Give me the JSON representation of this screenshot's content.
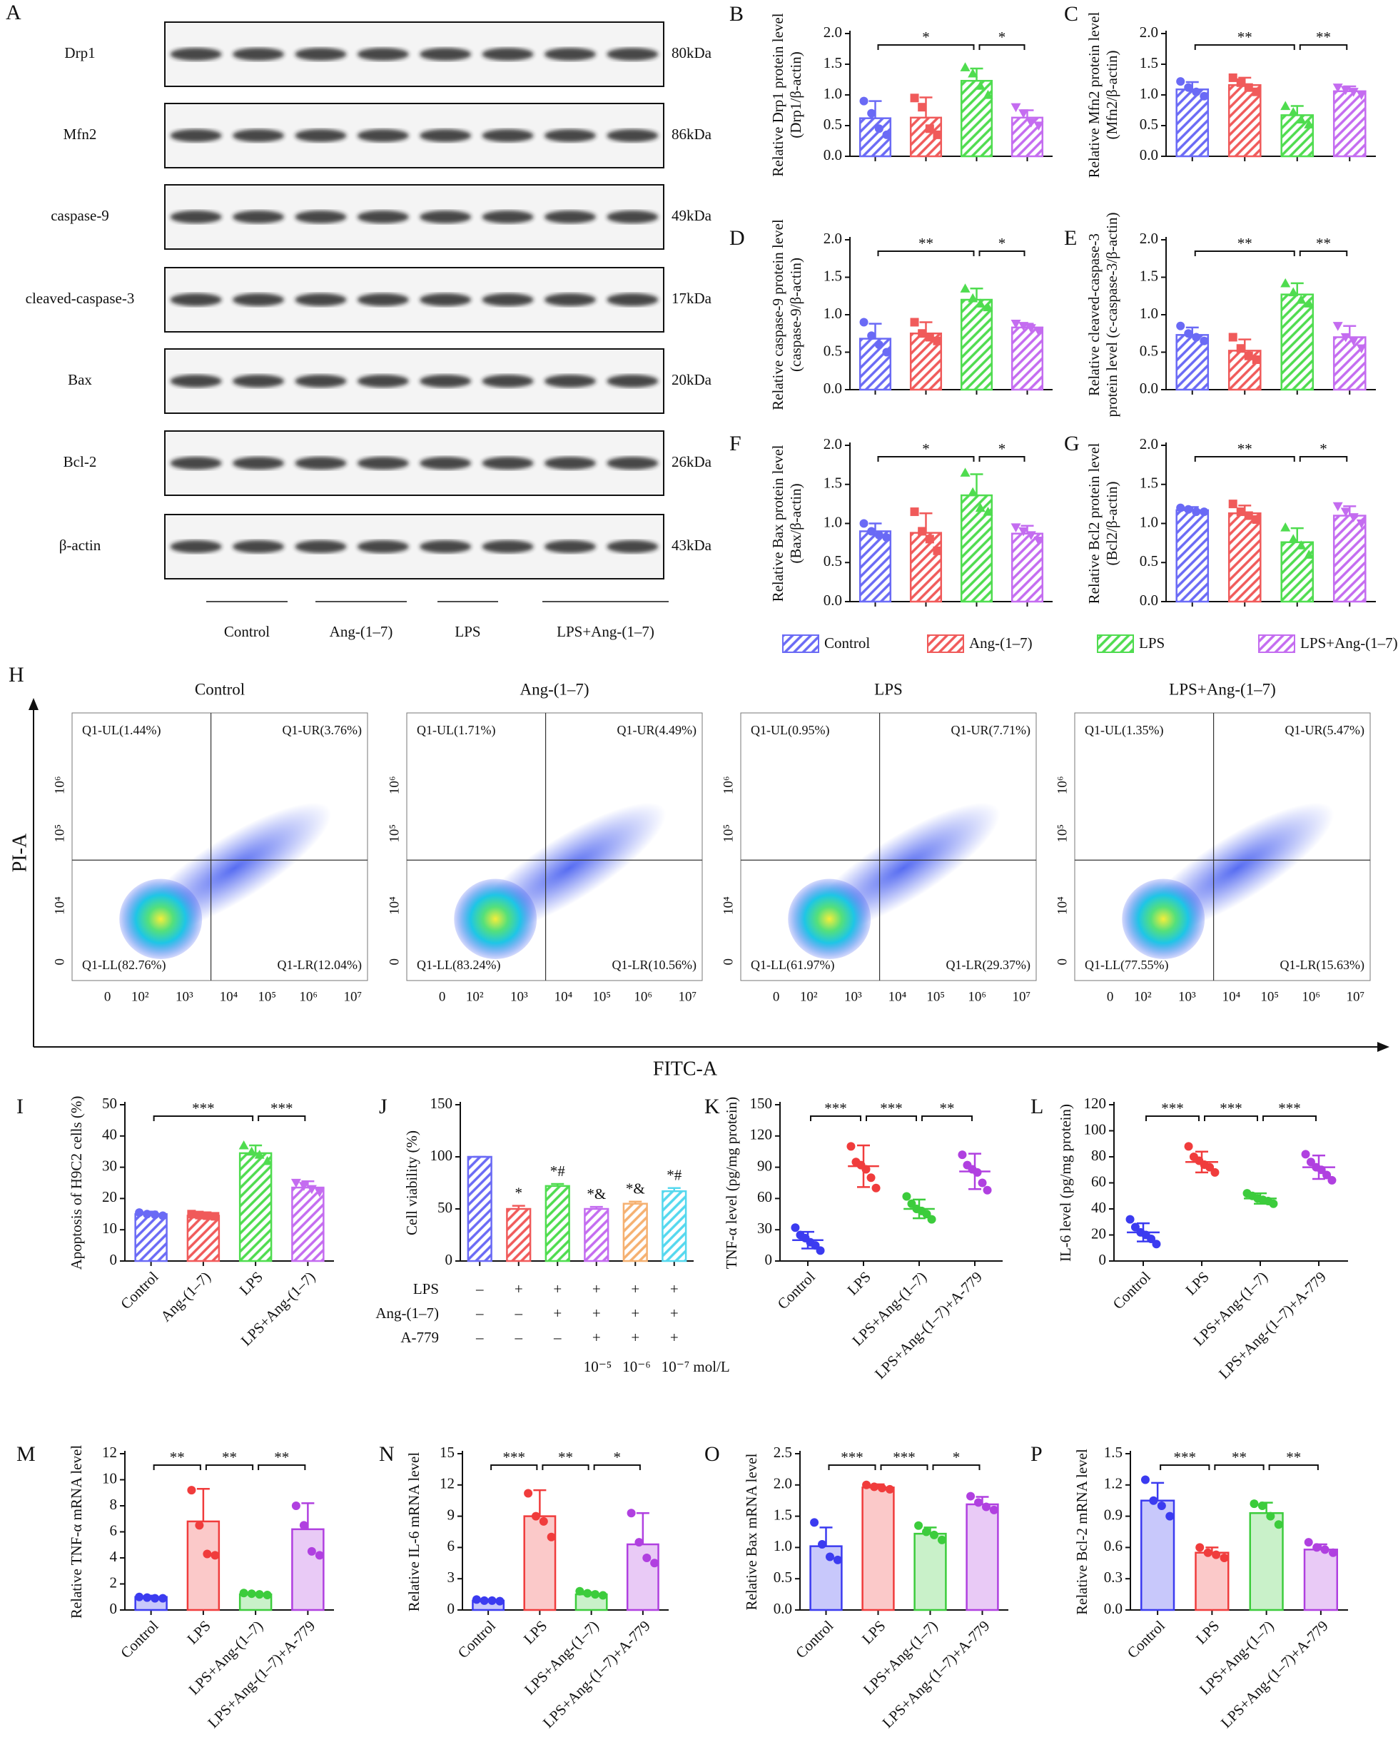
{
  "blot": {
    "panel": "A",
    "rows": [
      {
        "label": "Drp1",
        "size": "80kDa"
      },
      {
        "label": "Mfn2",
        "size": "86kDa"
      },
      {
        "label": "caspase-9",
        "size": "49kDa"
      },
      {
        "label": "cleaved-caspase-3",
        "size": "17kDa"
      },
      {
        "label": "Bax",
        "size": "20kDa"
      },
      {
        "label": "Bcl-2",
        "size": "26kDa"
      },
      {
        "label": "β-actin",
        "size": "43kDa"
      }
    ],
    "groups": [
      "Control",
      "Ang-(1–7)",
      "LPS",
      "LPS+Ang-(1–7)"
    ]
  },
  "groups": [
    {
      "name": "Control",
      "color": "#6a6af5",
      "marker": "circle"
    },
    {
      "name": "Ang-(1–7)",
      "color": "#f05a5a",
      "marker": "square"
    },
    {
      "name": "LPS",
      "color": "#4fdc4f",
      "marker": "triangle-up"
    },
    {
      "name": "LPS+Ang-(1–7)",
      "color": "#c46cf0",
      "marker": "triangle-down"
    }
  ],
  "flow": {
    "panel": "H",
    "xlabel": "FITC-A",
    "ylabel": "PI-A",
    "xticks": [
      "0",
      "10²",
      "10³",
      "10⁴",
      "10⁵",
      "10⁶",
      "10⁷"
    ],
    "yticks": [
      "0",
      "10⁴",
      "10⁵",
      "10⁶"
    ],
    "plots": [
      {
        "title": "Control",
        "UL": "Q1-UL(1.44%)",
        "UR": "Q1-UR(3.76%)",
        "LL": "Q1-LL(82.76%)",
        "LR": "Q1-LR(12.04%)"
      },
      {
        "title": "Ang-(1–7)",
        "UL": "Q1-UL(1.71%)",
        "UR": "Q1-UR(4.49%)",
        "LL": "Q1-LL(83.24%)",
        "LR": "Q1-LR(10.56%)"
      },
      {
        "title": "LPS",
        "UL": "Q1-UL(0.95%)",
        "UR": "Q1-UR(7.71%)",
        "LL": "Q1-LL(61.97%)",
        "LR": "Q1-LR(29.37%)"
      },
      {
        "title": "LPS+Ang-(1–7)",
        "UL": "Q1-UL(1.35%)",
        "UR": "Q1-UR(5.47%)",
        "LL": "Q1-LL(77.55%)",
        "LR": "Q1-LR(15.63%)"
      }
    ]
  },
  "chart_data": [
    {
      "type": "bar",
      "panel": "B",
      "bar_style": "hatched",
      "ylabel": [
        "Relative Drp1 protein level",
        "(Drp1/β-actin)"
      ],
      "ylim": [
        0,
        2
      ],
      "yticks": [
        {
          "value": 0,
          "label": "0.0"
        },
        0.5,
        {
          "value": 1,
          "label": "1.0"
        },
        1.5,
        {
          "value": 2,
          "label": "2.0"
        }
      ],
      "values": [
        0.62,
        0.63,
        1.23,
        0.63
      ],
      "errors": [
        0.28,
        0.33,
        0.2,
        0.12
      ],
      "points": [
        [
          0.9,
          0.7,
          0.45,
          0.35
        ],
        [
          0.95,
          0.8,
          0.45,
          0.35
        ],
        [
          1.45,
          1.35,
          1.15,
          1.0
        ],
        [
          0.8,
          0.7,
          0.55,
          0.5
        ]
      ],
      "brackets": [
        {
          "text": "*",
          "from": 0,
          "to": 2
        },
        {
          "text": "*",
          "from": 2,
          "to": 3
        }
      ]
    },
    {
      "type": "bar",
      "panel": "C",
      "bar_style": "hatched",
      "ylabel": [
        "Relative Mfn2 protein level",
        "(Mfn2/β-actin)"
      ],
      "ylim": [
        0,
        2
      ],
      "yticks": [
        {
          "value": 0,
          "label": "0.0"
        },
        0.5,
        {
          "value": 1,
          "label": "1.0"
        },
        1.5,
        {
          "value": 2,
          "label": "2.0"
        }
      ],
      "values": [
        1.09,
        1.16,
        0.67,
        1.06
      ],
      "errors": [
        0.12,
        0.12,
        0.15,
        0.08
      ],
      "points": [
        [
          1.22,
          1.12,
          1.05,
          0.98
        ],
        [
          1.28,
          1.2,
          1.12,
          1.05
        ],
        [
          0.82,
          0.72,
          0.6,
          0.52
        ],
        [
          1.12,
          1.08,
          1.05,
          1.0
        ]
      ],
      "brackets": [
        {
          "text": "**",
          "from": 0,
          "to": 2
        },
        {
          "text": "**",
          "from": 2,
          "to": 3
        }
      ]
    },
    {
      "type": "bar",
      "panel": "D",
      "bar_style": "hatched",
      "ylabel": [
        "Relative caspase-9 protein level",
        "(caspase-9/β-actin)"
      ],
      "ylim": [
        0,
        2
      ],
      "yticks": [
        {
          "value": 0,
          "label": "0.0"
        },
        0.5,
        {
          "value": 1,
          "label": "1.0"
        },
        1.5,
        {
          "value": 2,
          "label": "2.0"
        }
      ],
      "values": [
        0.68,
        0.75,
        1.2,
        0.83
      ],
      "errors": [
        0.2,
        0.15,
        0.15,
        0.05
      ],
      "points": [
        [
          0.9,
          0.72,
          0.6,
          0.5
        ],
        [
          0.9,
          0.75,
          0.7,
          0.65
        ],
        [
          1.35,
          1.22,
          1.15,
          1.1
        ],
        [
          0.88,
          0.85,
          0.82,
          0.78
        ]
      ],
      "brackets": [
        {
          "text": "**",
          "from": 0,
          "to": 2
        },
        {
          "text": "*",
          "from": 2,
          "to": 3
        }
      ]
    },
    {
      "type": "bar",
      "panel": "E",
      "bar_style": "hatched",
      "ylabel": [
        "Relative cleaved-caspase-3",
        "protein level (c-caspase-3/β-actin)"
      ],
      "ylim": [
        0,
        2
      ],
      "yticks": [
        {
          "value": 0,
          "label": "0.0"
        },
        0.5,
        {
          "value": 1,
          "label": "1.0"
        },
        1.5,
        {
          "value": 2,
          "label": "2.0"
        }
      ],
      "values": [
        0.73,
        0.52,
        1.27,
        0.7
      ],
      "errors": [
        0.1,
        0.15,
        0.15,
        0.15
      ],
      "points": [
        [
          0.85,
          0.75,
          0.7,
          0.65
        ],
        [
          0.7,
          0.55,
          0.45,
          0.4
        ],
        [
          1.42,
          1.3,
          1.2,
          1.15
        ],
        [
          0.85,
          0.7,
          0.65,
          0.55
        ]
      ],
      "brackets": [
        {
          "text": "**",
          "from": 0,
          "to": 2
        },
        {
          "text": "**",
          "from": 2,
          "to": 3
        }
      ]
    },
    {
      "type": "bar",
      "panel": "F",
      "bar_style": "hatched",
      "ylabel": [
        "Relative Bax protein level",
        "(Bax/β-actin)"
      ],
      "ylim": [
        0,
        2
      ],
      "yticks": [
        {
          "value": 0,
          "label": "0.0"
        },
        0.5,
        {
          "value": 1,
          "label": "1.0"
        },
        1.5,
        {
          "value": 2,
          "label": "2.0"
        }
      ],
      "values": [
        0.9,
        0.88,
        1.36,
        0.87
      ],
      "errors": [
        0.1,
        0.25,
        0.27,
        0.1
      ],
      "points": [
        [
          1.0,
          0.9,
          0.85,
          0.82
        ],
        [
          1.15,
          0.9,
          0.8,
          0.65
        ],
        [
          1.65,
          1.4,
          1.2,
          1.15
        ],
        [
          0.95,
          0.9,
          0.85,
          0.78
        ]
      ],
      "brackets": [
        {
          "text": "*",
          "from": 0,
          "to": 2
        },
        {
          "text": "*",
          "from": 2,
          "to": 3
        }
      ]
    },
    {
      "type": "bar",
      "panel": "G",
      "bar_style": "hatched",
      "ylabel": [
        "Relative Bcl2 protein level",
        "(Bcl2/β-actin)"
      ],
      "ylim": [
        0,
        2
      ],
      "yticks": [
        {
          "value": 0,
          "label": "0.0"
        },
        0.5,
        {
          "value": 1,
          "label": "1.0"
        },
        1.5,
        {
          "value": 2,
          "label": "2.0"
        }
      ],
      "values": [
        1.17,
        1.13,
        0.76,
        1.1
      ],
      "errors": [
        0.04,
        0.1,
        0.18,
        0.12
      ],
      "points": [
        [
          1.2,
          1.18,
          1.15,
          1.15
        ],
        [
          1.25,
          1.15,
          1.1,
          1.05
        ],
        [
          0.95,
          0.8,
          0.72,
          0.6
        ],
        [
          1.22,
          1.15,
          1.08,
          1.0
        ]
      ],
      "brackets": [
        {
          "text": "**",
          "from": 0,
          "to": 2
        },
        {
          "text": "*",
          "from": 2,
          "to": 3
        }
      ]
    },
    {
      "type": "bar",
      "panel": "I",
      "bar_style": "hatched",
      "ylabel": [
        "Apoptosis of H9C2 cells (%)"
      ],
      "ylim": [
        0,
        50
      ],
      "yticks": [
        0,
        10,
        20,
        30,
        40,
        50
      ],
      "categories": [
        "Control",
        "Ang-(1–7)",
        "LPS",
        "LPS+Ang-(1–7)"
      ],
      "values": [
        15,
        14.5,
        34.5,
        23.5
      ],
      "errors": [
        0.8,
        0.8,
        2.5,
        2
      ],
      "points": [
        [
          15.5,
          15,
          14.8,
          14.5
        ],
        [
          15,
          14.7,
          14.5,
          14.3
        ],
        [
          37,
          35,
          34,
          32
        ],
        [
          25,
          24,
          23,
          22
        ]
      ],
      "brackets": [
        {
          "text": "***",
          "from": 0,
          "to": 2
        },
        {
          "text": "***",
          "from": 2,
          "to": 3
        }
      ]
    },
    {
      "type": "bar",
      "panel": "J",
      "bar_style": "hatched",
      "ylabel": [
        "Cell viability (%)"
      ],
      "ylim": [
        0,
        150
      ],
      "yticks": [
        0,
        50,
        100,
        150
      ],
      "values": [
        100,
        50,
        72,
        50,
        55,
        67
      ],
      "errors": [
        0,
        3,
        2,
        2,
        2,
        3
      ],
      "colors": [
        "#6a6af5",
        "#f05a5a",
        "#4fdc4f",
        "#c46cf0",
        "#f5b070",
        "#55d8ee"
      ],
      "annotations": [
        null,
        "*",
        "*#",
        "*&",
        "*&",
        "*#"
      ],
      "table": [
        {
          "label": "LPS",
          "marks": [
            "–",
            "+",
            "+",
            "+",
            "+",
            "+"
          ]
        },
        {
          "label": "Ang-(1–7)",
          "marks": [
            "–",
            "–",
            "+",
            "+",
            "+",
            "+"
          ]
        },
        {
          "label": "A-779",
          "marks": [
            "–",
            "–",
            "–",
            "+",
            "+",
            "+"
          ]
        }
      ],
      "concentrations": [
        null,
        null,
        null,
        "10⁻⁵",
        "10⁻⁶",
        "10⁻⁷ mol/L"
      ]
    },
    {
      "type": "dot",
      "panel": "K",
      "ylabel": [
        "TNF-α level (pg/mg protein)"
      ],
      "ylim": [
        0,
        150
      ],
      "yticks": [
        0,
        30,
        60,
        90,
        120,
        150
      ],
      "categories": [
        "Control",
        "LPS",
        "LPS+Ang-(1–7)",
        "LPS+Ang-(1–7)+A-779"
      ],
      "colors": [
        "#3b3bf0",
        "#f03c3c",
        "#3ccc3c",
        "#b040e0"
      ],
      "values": [
        20,
        91,
        50,
        86
      ],
      "errors": [
        8,
        20,
        9,
        17
      ],
      "points": [
        [
          32,
          25,
          22,
          18,
          15,
          10
        ],
        [
          110,
          95,
          92,
          88,
          80,
          70
        ],
        [
          62,
          55,
          50,
          48,
          45,
          40
        ],
        [
          102,
          92,
          88,
          85,
          75,
          68
        ]
      ],
      "brackets": [
        {
          "text": "***",
          "from": 0,
          "to": 1
        },
        {
          "text": "***",
          "from": 1,
          "to": 2
        },
        {
          "text": "**",
          "from": 2,
          "to": 3
        }
      ]
    },
    {
      "type": "dot",
      "panel": "L",
      "ylabel": [
        "IL-6 level (pg/mg protein)"
      ],
      "ylim": [
        0,
        120
      ],
      "yticks": [
        0,
        20,
        40,
        60,
        80,
        100,
        120
      ],
      "categories": [
        "Control",
        "LPS",
        "LPS+Ang-(1–7)",
        "LPS+Ang-(1–7)+A-779"
      ],
      "colors": [
        "#3b3bf0",
        "#f03c3c",
        "#3ccc3c",
        "#b040e0"
      ],
      "values": [
        22,
        76,
        48,
        72
      ],
      "errors": [
        7,
        8,
        4,
        9
      ],
      "points": [
        [
          32,
          26,
          22,
          20,
          17,
          13
        ],
        [
          88,
          80,
          77,
          74,
          72,
          68
        ],
        [
          52,
          50,
          48,
          47,
          46,
          44
        ],
        [
          82,
          76,
          72,
          70,
          66,
          62
        ]
      ],
      "brackets": [
        {
          "text": "***",
          "from": 0,
          "to": 1
        },
        {
          "text": "***",
          "from": 1,
          "to": 2
        },
        {
          "text": "***",
          "from": 2,
          "to": 3
        }
      ]
    },
    {
      "type": "bar",
      "panel": "M",
      "bar_style": "open",
      "ylabel": [
        "Relative TNF-α mRNA level"
      ],
      "ylim": [
        0,
        12
      ],
      "yticks": [
        0,
        2,
        4,
        6,
        8,
        10,
        12
      ],
      "categories": [
        "Control",
        "LPS",
        "LPS+Ang-(1–7)",
        "LPS+Ang-(1–7)+A-779"
      ],
      "colors": [
        "#3b3bf0",
        "#f03c3c",
        "#3ccc3c",
        "#b040e0"
      ],
      "values": [
        1.0,
        6.8,
        1.2,
        6.2
      ],
      "errors": [
        0.1,
        2.5,
        0.1,
        2
      ],
      "points": [
        [
          1.0,
          0.95,
          0.9,
          0.9
        ],
        [
          9.2,
          6.5,
          4.3,
          4.2
        ],
        [
          1.3,
          1.25,
          1.2,
          1.15
        ],
        [
          8.0,
          6.5,
          4.5,
          4.2
        ]
      ],
      "brackets": [
        {
          "text": "**",
          "from": 0,
          "to": 1
        },
        {
          "text": "**",
          "from": 1,
          "to": 2
        },
        {
          "text": "**",
          "from": 2,
          "to": 3
        }
      ]
    },
    {
      "type": "bar",
      "panel": "N",
      "bar_style": "open",
      "ylabel": [
        "Relative IL-6 mRNA level"
      ],
      "ylim": [
        0,
        15
      ],
      "yticks": [
        0,
        3,
        6,
        9,
        12,
        15
      ],
      "categories": [
        "Control",
        "LPS",
        "LPS+Ang-(1–7)",
        "LPS+Ang-(1–7)+A-779"
      ],
      "colors": [
        "#3b3bf0",
        "#f03c3c",
        "#3ccc3c",
        "#b040e0"
      ],
      "values": [
        0.9,
        9,
        1.5,
        6.3
      ],
      "errors": [
        0.1,
        2.5,
        0.2,
        3
      ],
      "points": [
        [
          1.0,
          0.9,
          0.9,
          0.85
        ],
        [
          11.2,
          9,
          8.5,
          7
        ],
        [
          1.8,
          1.6,
          1.5,
          1.4
        ],
        [
          9.3,
          6.5,
          5,
          4.5
        ]
      ],
      "brackets": [
        {
          "text": "***",
          "from": 0,
          "to": 1
        },
        {
          "text": "**",
          "from": 1,
          "to": 2
        },
        {
          "text": "*",
          "from": 2,
          "to": 3
        }
      ]
    },
    {
      "type": "bar",
      "panel": "O",
      "bar_style": "open",
      "ylabel": [
        "Relative Bax mRNA level"
      ],
      "ylim": [
        0,
        2.5
      ],
      "yticks": [
        {
          "value": 0,
          "label": "0.0"
        },
        0.5,
        {
          "value": 1,
          "label": "1.0"
        },
        1.5,
        {
          "value": 2,
          "label": "2.0"
        },
        2.5
      ],
      "categories": [
        "Control",
        "LPS",
        "LPS+Ang-(1–7)",
        "LPS+Ang-(1–7)+A-779"
      ],
      "colors": [
        "#3b3bf0",
        "#f03c3c",
        "#3ccc3c",
        "#b040e0"
      ],
      "values": [
        1.02,
        1.96,
        1.22,
        1.69
      ],
      "errors": [
        0.3,
        0.05,
        0.1,
        0.12
      ],
      "points": [
        [
          1.4,
          1.05,
          0.85,
          0.8
        ],
        [
          2.0,
          1.97,
          1.95,
          1.93
        ],
        [
          1.35,
          1.25,
          1.2,
          1.12
        ],
        [
          1.82,
          1.72,
          1.65,
          1.6
        ]
      ],
      "brackets": [
        {
          "text": "***",
          "from": 0,
          "to": 1
        },
        {
          "text": "***",
          "from": 1,
          "to": 2
        },
        {
          "text": "*",
          "from": 2,
          "to": 3
        }
      ]
    },
    {
      "type": "bar",
      "panel": "P",
      "bar_style": "open",
      "ylabel": [
        "Relative Bcl-2 mRNA level"
      ],
      "ylim": [
        0,
        1.5
      ],
      "yticks": [
        {
          "value": 0,
          "label": "0.0"
        },
        0.3,
        0.6,
        0.9,
        1.2,
        1.5
      ],
      "categories": [
        "Control",
        "LPS",
        "LPS+Ang-(1–7)",
        "LPS+Ang-(1–7)+A-779"
      ],
      "colors": [
        "#3b3bf0",
        "#f03c3c",
        "#3ccc3c",
        "#b040e0"
      ],
      "values": [
        1.05,
        0.55,
        0.93,
        0.58
      ],
      "errors": [
        0.17,
        0.05,
        0.1,
        0.05
      ],
      "points": [
        [
          1.25,
          1.05,
          1.0,
          0.9
        ],
        [
          0.6,
          0.55,
          0.53,
          0.5
        ],
        [
          1.02,
          1.0,
          0.9,
          0.82
        ],
        [
          0.65,
          0.6,
          0.58,
          0.55
        ]
      ],
      "brackets": [
        {
          "text": "***",
          "from": 0,
          "to": 1
        },
        {
          "text": "**",
          "from": 1,
          "to": 2
        },
        {
          "text": "**",
          "from": 2,
          "to": 3
        }
      ]
    }
  ]
}
